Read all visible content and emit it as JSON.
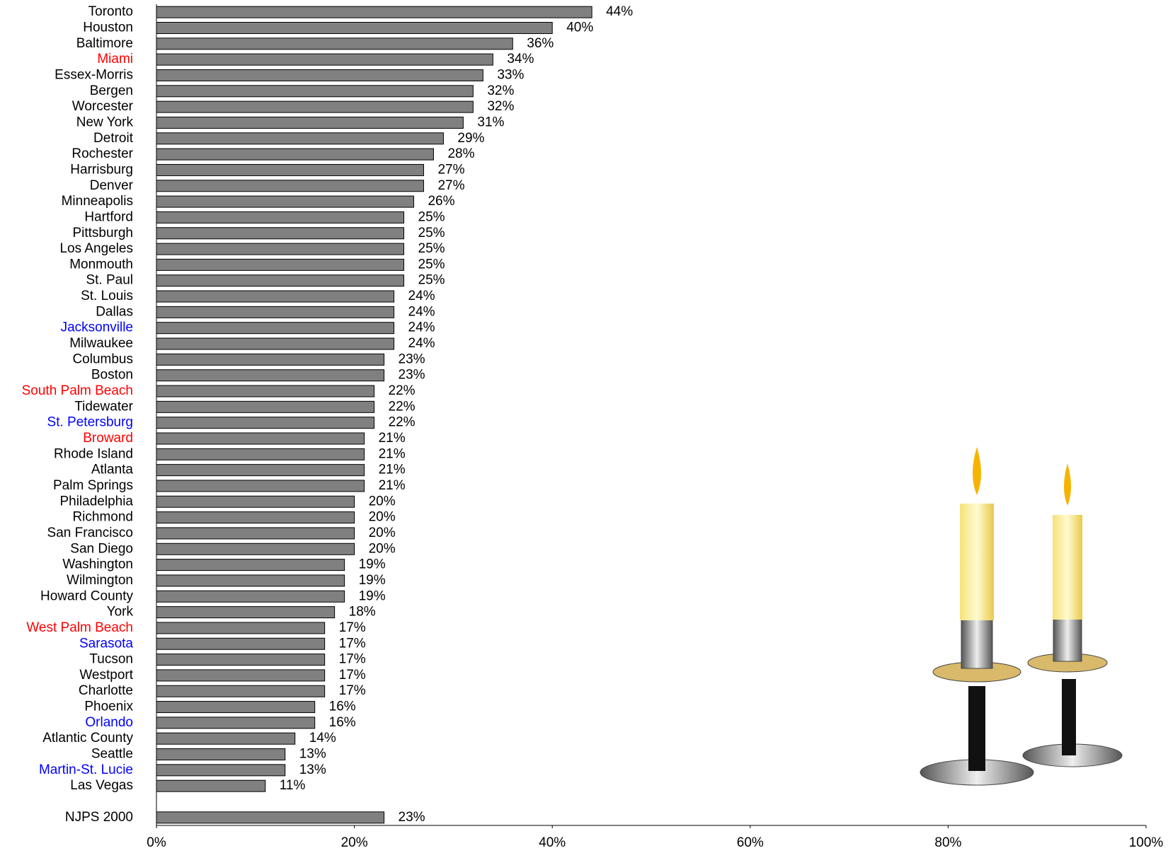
{
  "chart_data": {
    "type": "bar",
    "categories": [
      "Toronto",
      "Houston",
      "Baltimore",
      "Miami",
      "Essex-Morris",
      "Bergen",
      "Worcester",
      "New York",
      "Detroit",
      "Rochester",
      "Harrisburg",
      "Denver",
      "Minneapolis",
      "Hartford",
      "Pittsburgh",
      "Los Angeles",
      "Monmouth",
      "St. Paul",
      "St. Louis",
      "Dallas",
      "Jacksonville",
      "Milwaukee",
      "Columbus",
      "Boston",
      "South Palm Beach",
      "Tidewater",
      "St. Petersburg",
      "Broward",
      "Rhode Island",
      "Atlanta",
      "Palm Springs",
      "Philadelphia",
      "Richmond",
      "San Francisco",
      "San Diego",
      "Washington",
      "Wilmington",
      "Howard County",
      "York",
      "West Palm Beach",
      "Sarasota",
      "Tucson",
      "Westport",
      "Charlotte",
      "Phoenix",
      "Orlando",
      "Atlantic County",
      "Seattle",
      "Martin-St. Lucie",
      "Las Vegas",
      null,
      "NJPS 2000"
    ],
    "values": [
      44,
      40,
      36,
      34,
      33,
      32,
      32,
      31,
      29,
      28,
      27,
      27,
      26,
      25,
      25,
      25,
      25,
      25,
      24,
      24,
      24,
      24,
      23,
      23,
      22,
      22,
      22,
      21,
      21,
      21,
      21,
      20,
      20,
      20,
      20,
      19,
      19,
      19,
      18,
      17,
      17,
      17,
      17,
      17,
      16,
      16,
      14,
      13,
      13,
      11,
      null,
      23
    ],
    "value_labels": [
      "44%",
      "40%",
      "36%",
      "34%",
      "33%",
      "32%",
      "32%",
      "31%",
      "29%",
      "28%",
      "27%",
      "27%",
      "26%",
      "25%",
      "25%",
      "25%",
      "25%",
      "25%",
      "24%",
      "24%",
      "24%",
      "24%",
      "23%",
      "23%",
      "22%",
      "22%",
      "22%",
      "21%",
      "21%",
      "21%",
      "21%",
      "20%",
      "20%",
      "20%",
      "20%",
      "19%",
      "19%",
      "19%",
      "18%",
      "17%",
      "17%",
      "17%",
      "17%",
      "17%",
      "16%",
      "16%",
      "14%",
      "13%",
      "13%",
      "11%",
      null,
      "23%"
    ],
    "label_colors": [
      "#000000",
      "#000000",
      "#000000",
      "#ff0000",
      "#000000",
      "#000000",
      "#000000",
      "#000000",
      "#000000",
      "#000000",
      "#000000",
      "#000000",
      "#000000",
      "#000000",
      "#000000",
      "#000000",
      "#000000",
      "#000000",
      "#000000",
      "#000000",
      "#0000ff",
      "#000000",
      "#000000",
      "#000000",
      "#ff0000",
      "#000000",
      "#0000ff",
      "#ff0000",
      "#000000",
      "#000000",
      "#000000",
      "#000000",
      "#000000",
      "#000000",
      "#000000",
      "#000000",
      "#000000",
      "#000000",
      "#000000",
      "#ff0000",
      "#0000ff",
      "#000000",
      "#000000",
      "#000000",
      "#000000",
      "#0000ff",
      "#000000",
      "#000000",
      "#0000ff",
      "#000000",
      null,
      "#000000"
    ],
    "color": "#808080",
    "xlim": [
      0,
      100
    ],
    "xticks": [
      {
        "value": 0,
        "label": "0%"
      },
      {
        "value": 20,
        "label": "20%"
      },
      {
        "value": 40,
        "label": "40%"
      },
      {
        "value": 60,
        "label": "60%"
      },
      {
        "value": 80,
        "label": "80%"
      },
      {
        "value": 100,
        "label": "100%"
      }
    ]
  }
}
